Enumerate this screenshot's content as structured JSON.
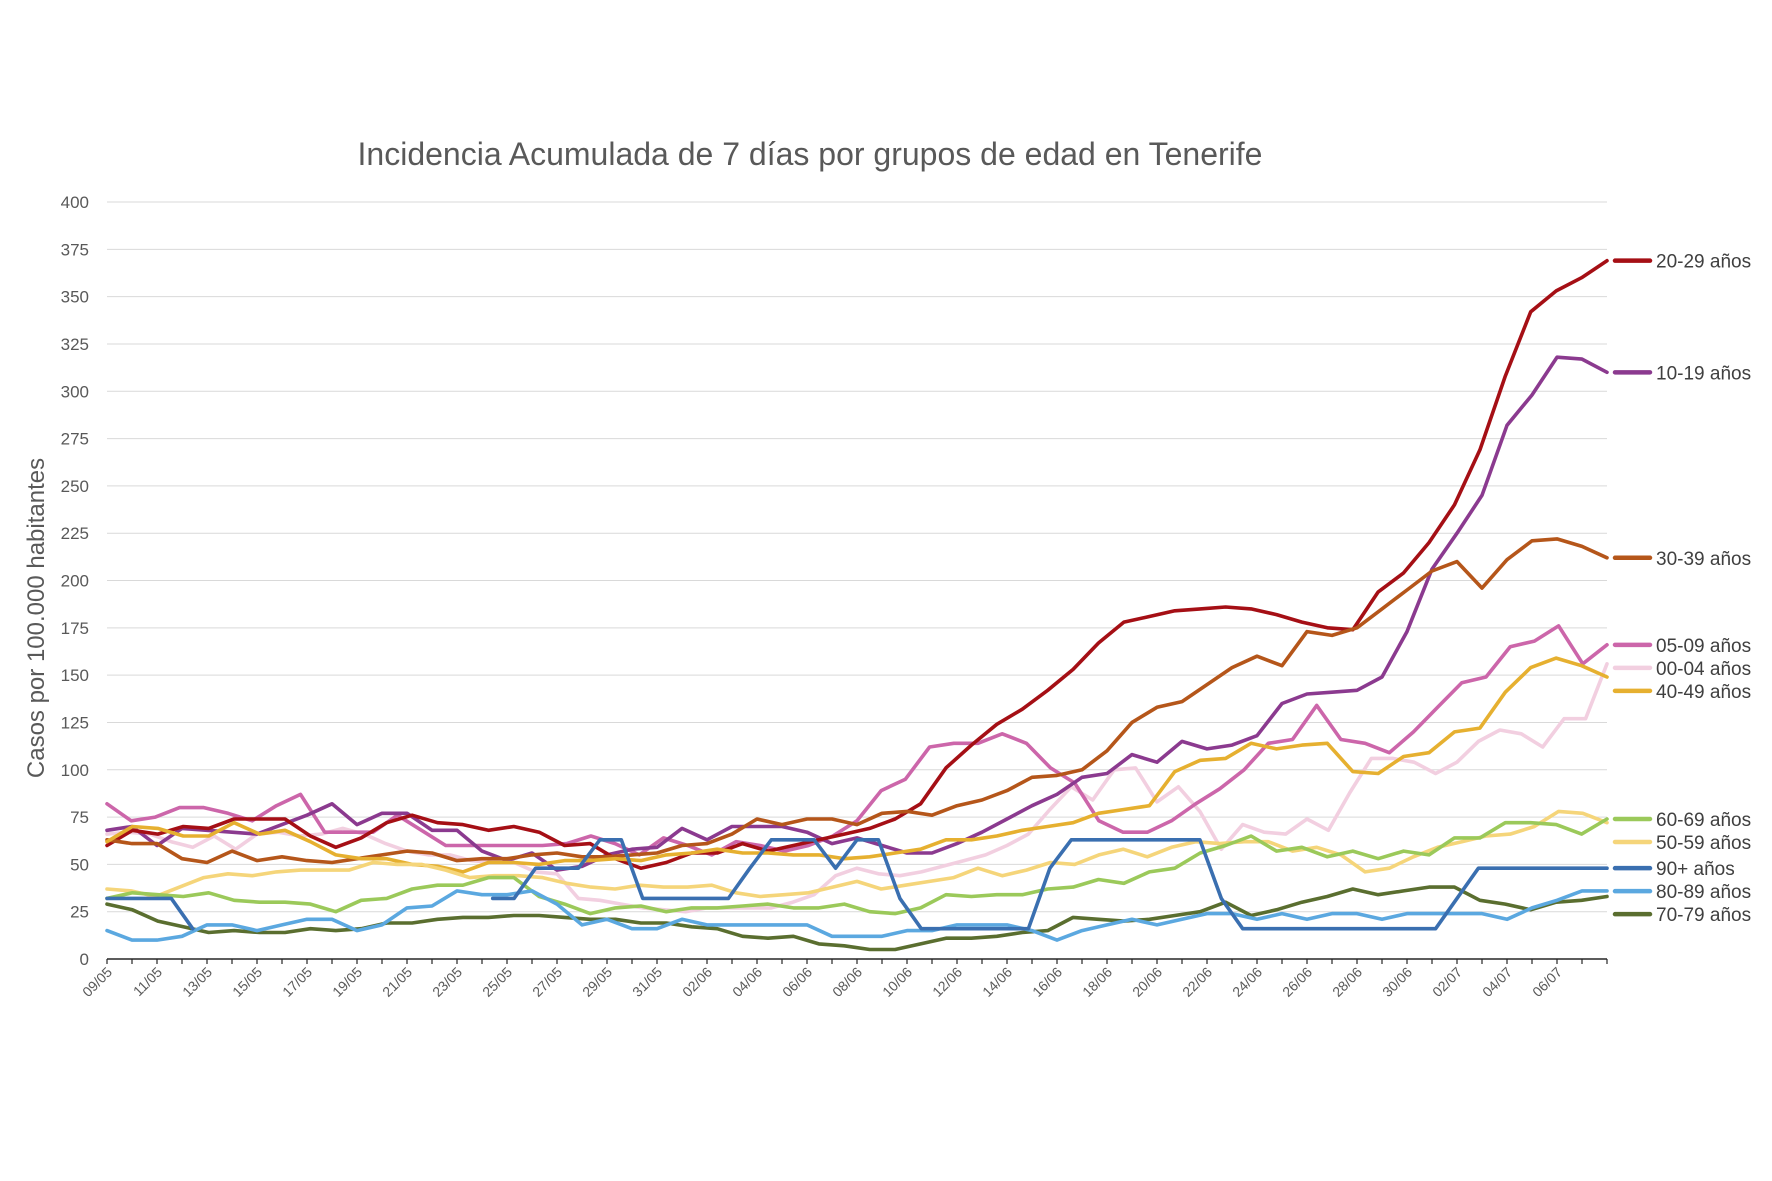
{
  "chart_data": {
    "type": "line",
    "title": "Incidencia Acumulada de 7 días por grupos de edad en Tenerife",
    "xlabel": "",
    "ylabel": "Casos por 100.000 habitantes",
    "ylim": [
      0,
      400
    ],
    "yticks": [
      0,
      25,
      50,
      75,
      100,
      125,
      150,
      175,
      200,
      225,
      250,
      275,
      300,
      325,
      350,
      375,
      400
    ],
    "grid": true,
    "legend_position": "right",
    "x_start": "09/05",
    "x_end": "07/07",
    "x_tick_labels": [
      "09/05",
      "11/05",
      "13/05",
      "15/05",
      "17/05",
      "19/05",
      "21/05",
      "23/05",
      "25/05",
      "27/05",
      "29/05",
      "31/05",
      "02/06",
      "04/06",
      "06/06",
      "08/06",
      "10/06",
      "12/06",
      "14/06",
      "16/06",
      "18/06",
      "20/06",
      "22/06",
      "24/06",
      "26/06",
      "28/06",
      "30/06",
      "02/07",
      "04/07",
      "06/07"
    ],
    "series": [
      {
        "name": "00-04 años",
        "color": "#f2cfe0",
        "values": [
          66,
          67,
          66,
          62,
          59,
          65,
          58,
          66,
          67,
          65,
          66,
          69,
          66,
          61,
          57,
          55,
          55,
          52,
          51,
          51,
          46,
          45,
          32,
          31,
          29,
          27,
          26,
          25,
          27,
          27,
          27,
          27,
          30,
          34,
          44,
          48,
          45,
          44,
          46,
          49,
          52,
          55,
          60,
          66,
          79,
          91,
          84,
          100,
          101,
          83,
          91,
          78,
          58,
          71,
          67,
          66,
          74,
          68,
          88,
          106,
          106,
          104,
          98,
          104,
          115,
          121,
          119,
          112,
          127,
          127,
          156
        ]
      },
      {
        "name": "05-09 años",
        "color": "#cc66aa",
        "values": [
          82,
          73,
          75,
          80,
          80,
          77,
          73,
          81,
          87,
          67,
          67,
          67,
          76,
          68,
          60,
          60,
          60,
          60,
          60,
          61,
          65,
          61,
          55,
          64,
          60,
          55,
          62,
          60,
          57,
          60,
          65,
          73,
          89,
          95,
          112,
          114,
          114,
          119,
          114,
          101,
          93,
          73,
          67,
          67,
          73,
          82,
          90,
          100,
          114,
          116,
          134,
          116,
          114,
          109,
          120,
          133,
          146,
          149,
          165,
          168,
          176,
          156,
          166
        ]
      },
      {
        "name": "10-19 años",
        "color": "#8b3a8f",
        "values": [
          68,
          70,
          60,
          69,
          68,
          67,
          66,
          71,
          76,
          82,
          71,
          77,
          77,
          68,
          68,
          57,
          52,
          56,
          47,
          49,
          55,
          58,
          59,
          69,
          63,
          70,
          70,
          70,
          67,
          61,
          64,
          60,
          56,
          56,
          61,
          67,
          74,
          81,
          87,
          96,
          98,
          108,
          104,
          115,
          111,
          113,
          118,
          135,
          140,
          141,
          142,
          149,
          173,
          206,
          225,
          245,
          282,
          298,
          318,
          317,
          310
        ]
      },
      {
        "name": "20-29 años",
        "color": "#a50f15",
        "values": [
          60,
          68,
          66,
          70,
          69,
          74,
          74,
          74,
          65,
          59,
          64,
          72,
          76,
          72,
          71,
          68,
          70,
          67,
          60,
          61,
          53,
          48,
          51,
          56,
          56,
          61,
          57,
          60,
          63,
          66,
          69,
          74,
          82,
          101,
          113,
          124,
          132,
          142,
          153,
          167,
          178,
          181,
          184,
          185,
          186,
          185,
          182,
          178,
          175,
          174,
          194,
          204,
          220,
          240,
          269,
          308,
          342,
          353,
          360,
          369
        ]
      },
      {
        "name": "30-39 años",
        "color": "#b5561a",
        "values": [
          63,
          61,
          61,
          53,
          51,
          57,
          52,
          54,
          52,
          51,
          53,
          55,
          57,
          56,
          52,
          53,
          53,
          55,
          56,
          54,
          54,
          55,
          56,
          60,
          61,
          66,
          74,
          71,
          74,
          74,
          71,
          77,
          78,
          76,
          81,
          84,
          89,
          96,
          97,
          100,
          110,
          125,
          133,
          136,
          145,
          154,
          160,
          155,
          173,
          171,
          175,
          185,
          195,
          205,
          210,
          196,
          211,
          221,
          222,
          218,
          212
        ]
      },
      {
        "name": "40-49 años",
        "color": "#e6b030",
        "values": [
          62,
          70,
          69,
          65,
          65,
          72,
          66,
          68,
          62,
          55,
          53,
          53,
          50,
          49,
          46,
          51,
          51,
          50,
          52,
          52,
          53,
          52,
          55,
          56,
          58,
          56,
          56,
          55,
          55,
          53,
          54,
          56,
          58,
          63,
          63,
          65,
          68,
          70,
          72,
          77,
          79,
          81,
          99,
          105,
          106,
          114,
          111,
          113,
          114,
          99,
          98,
          107,
          109,
          120,
          122,
          141,
          154,
          159,
          155,
          149
        ]
      },
      {
        "name": "50-59 años",
        "color": "#f5d57a",
        "values": [
          37,
          36,
          33,
          38,
          43,
          45,
          44,
          46,
          47,
          47,
          47,
          51,
          50,
          50,
          47,
          43,
          44,
          44,
          43,
          40,
          38,
          37,
          39,
          38,
          38,
          39,
          35,
          33,
          34,
          35,
          38,
          41,
          37,
          39,
          41,
          43,
          48,
          44,
          47,
          51,
          50,
          55,
          58,
          54,
          59,
          62,
          61,
          62,
          62,
          57,
          59,
          55,
          46,
          48,
          54,
          59,
          62,
          65,
          66,
          70,
          78,
          77,
          72
        ]
      },
      {
        "name": "60-69 años",
        "color": "#9bc95a",
        "values": [
          32,
          35,
          34,
          33,
          35,
          31,
          30,
          30,
          29,
          25,
          31,
          32,
          37,
          39,
          39,
          43,
          43,
          33,
          29,
          24,
          27,
          28,
          25,
          27,
          27,
          28,
          29,
          27,
          27,
          29,
          25,
          24,
          27,
          34,
          33,
          34,
          34,
          37,
          38,
          42,
          40,
          46,
          48,
          56,
          60,
          65,
          57,
          59,
          54,
          57,
          53,
          57,
          55,
          64,
          64,
          72,
          72,
          71,
          66,
          74
        ]
      },
      {
        "name": "70-79 años",
        "color": "#5a6e2f",
        "values": [
          29,
          26,
          20,
          17,
          14,
          15,
          14,
          14,
          16,
          15,
          16,
          19,
          19,
          21,
          22,
          22,
          23,
          23,
          22,
          21,
          21,
          19,
          19,
          17,
          16,
          12,
          11,
          12,
          8,
          7,
          5,
          5,
          8,
          11,
          11,
          12,
          14,
          15,
          22,
          21,
          20,
          21,
          23,
          25,
          30,
          23,
          26,
          30,
          33,
          37,
          34,
          36,
          38,
          38,
          31,
          29,
          26,
          30,
          31,
          33
        ]
      },
      {
        "name": "80-89 años",
        "color": "#5ba8e0",
        "values": [
          15,
          10,
          10,
          12,
          18,
          18,
          15,
          18,
          21,
          21,
          15,
          18,
          27,
          28,
          36,
          34,
          34,
          36,
          29,
          18,
          21,
          16,
          16,
          21,
          18,
          18,
          18,
          18,
          18,
          12,
          12,
          12,
          15,
          15,
          18,
          18,
          18,
          15,
          10,
          15,
          18,
          21,
          18,
          21,
          24,
          24,
          21,
          24,
          21,
          24,
          24,
          21,
          24,
          24,
          24,
          24,
          21,
          27,
          31,
          36,
          36
        ]
      },
      {
        "name": "90+ años",
        "color": "#3a6fb0",
        "values": [
          32,
          32,
          32,
          32,
          16,
          null,
          null,
          null,
          null,
          null,
          null,
          null,
          null,
          null,
          null,
          null,
          null,
          null,
          32,
          32,
          48,
          48,
          48,
          63,
          63,
          32,
          32,
          32,
          32,
          32,
          48,
          63,
          63,
          63,
          48,
          63,
          63,
          32,
          16,
          16,
          16,
          16,
          16,
          16,
          48,
          63,
          63,
          63,
          63,
          63,
          63,
          63,
          32,
          16,
          16,
          16,
          16,
          16,
          16,
          16,
          16,
          16,
          16,
          32,
          48,
          48,
          48,
          48,
          48,
          48,
          48
        ]
      }
    ]
  }
}
